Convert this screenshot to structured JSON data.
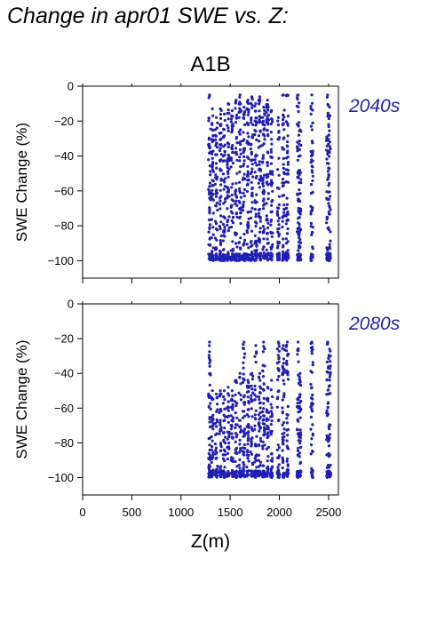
{
  "page_title": "Change in apr01 SWE vs. Z:",
  "chart_data": [
    {
      "type": "scatter",
      "title": "A1B",
      "period_label": "2040s",
      "xlabel": "",
      "ylabel": "SWE Change (%)",
      "xlim": [
        0,
        2600
      ],
      "ylim": [
        -110,
        0
      ],
      "xticks": [
        0,
        500,
        1000,
        1500,
        2000,
        2500
      ],
      "yticks": [
        0,
        -20,
        -40,
        -60,
        -80,
        -100
      ],
      "x_tick_labels_shown": false,
      "grid": false,
      "marker_color": "#1f1fb8",
      "columns": [
        {
          "x": 1290,
          "ymin": -100,
          "ymax": -5
        },
        {
          "x": 1320,
          "ymin": -100,
          "ymax": -13
        },
        {
          "x": 1360,
          "ymin": -100,
          "ymax": -18
        },
        {
          "x": 1400,
          "ymin": -100,
          "ymax": -13
        },
        {
          "x": 1440,
          "ymin": -100,
          "ymax": -16
        },
        {
          "x": 1480,
          "ymin": -100,
          "ymax": -10
        },
        {
          "x": 1520,
          "ymin": -100,
          "ymax": -14
        },
        {
          "x": 1560,
          "ymin": -100,
          "ymax": -8
        },
        {
          "x": 1600,
          "ymin": -100,
          "ymax": -5
        },
        {
          "x": 1640,
          "ymin": -100,
          "ymax": -12
        },
        {
          "x": 1680,
          "ymin": -100,
          "ymax": -8
        },
        {
          "x": 1720,
          "ymin": -100,
          "ymax": -6
        },
        {
          "x": 1760,
          "ymin": -100,
          "ymax": -10
        },
        {
          "x": 1800,
          "ymin": -100,
          "ymax": -6
        },
        {
          "x": 1840,
          "ymin": -100,
          "ymax": -12
        },
        {
          "x": 1880,
          "ymin": -100,
          "ymax": -8
        },
        {
          "x": 1920,
          "ymin": -100,
          "ymax": -14
        },
        {
          "x": 1990,
          "ymin": -100,
          "ymax": -18
        },
        {
          "x": 2040,
          "ymin": -100,
          "ymax": -5
        },
        {
          "x": 2080,
          "ymin": -100,
          "ymax": -5
        },
        {
          "x": 2190,
          "ymin": -100,
          "ymax": -5
        },
        {
          "x": 2210,
          "ymin": -100,
          "ymax": -25
        },
        {
          "x": 2330,
          "ymin": -100,
          "ymax": -5
        },
        {
          "x": 2490,
          "ymin": -100,
          "ymax": -5
        },
        {
          "x": 2510,
          "ymin": -100,
          "ymax": -12
        }
      ]
    },
    {
      "type": "scatter",
      "title": "",
      "period_label": "2080s",
      "xlabel": "Z(m)",
      "ylabel": "SWE Change (%)",
      "xlim": [
        0,
        2600
      ],
      "ylim": [
        -110,
        0
      ],
      "xticks": [
        0,
        500,
        1000,
        1500,
        2000,
        2500
      ],
      "yticks": [
        0,
        -20,
        -40,
        -60,
        -80,
        -100
      ],
      "x_tick_labels_shown": true,
      "grid": false,
      "marker_color": "#1f1fb8",
      "columns": [
        {
          "x": 1290,
          "ymin": -100,
          "ymax": -22
        },
        {
          "x": 1320,
          "ymin": -100,
          "ymax": -50
        },
        {
          "x": 1360,
          "ymin": -100,
          "ymax": -52
        },
        {
          "x": 1400,
          "ymin": -100,
          "ymax": -50
        },
        {
          "x": 1440,
          "ymin": -100,
          "ymax": -50
        },
        {
          "x": 1480,
          "ymin": -100,
          "ymax": -48
        },
        {
          "x": 1520,
          "ymin": -100,
          "ymax": -50
        },
        {
          "x": 1560,
          "ymin": -100,
          "ymax": -44
        },
        {
          "x": 1600,
          "ymin": -100,
          "ymax": -40
        },
        {
          "x": 1640,
          "ymin": -100,
          "ymax": -22
        },
        {
          "x": 1680,
          "ymin": -100,
          "ymax": -44
        },
        {
          "x": 1720,
          "ymin": -100,
          "ymax": -40
        },
        {
          "x": 1760,
          "ymin": -100,
          "ymax": -24
        },
        {
          "x": 1800,
          "ymin": -100,
          "ymax": -40
        },
        {
          "x": 1840,
          "ymin": -100,
          "ymax": -22
        },
        {
          "x": 1880,
          "ymin": -100,
          "ymax": -48
        },
        {
          "x": 1920,
          "ymin": -100,
          "ymax": -44
        },
        {
          "x": 1990,
          "ymin": -100,
          "ymax": -22
        },
        {
          "x": 2040,
          "ymin": -100,
          "ymax": -24
        },
        {
          "x": 2080,
          "ymin": -100,
          "ymax": -22
        },
        {
          "x": 2190,
          "ymin": -100,
          "ymax": -22
        },
        {
          "x": 2210,
          "ymin": -100,
          "ymax": -40
        },
        {
          "x": 2330,
          "ymin": -100,
          "ymax": -22
        },
        {
          "x": 2490,
          "ymin": -100,
          "ymax": -22
        },
        {
          "x": 2510,
          "ymin": -100,
          "ymax": -26
        }
      ]
    }
  ]
}
